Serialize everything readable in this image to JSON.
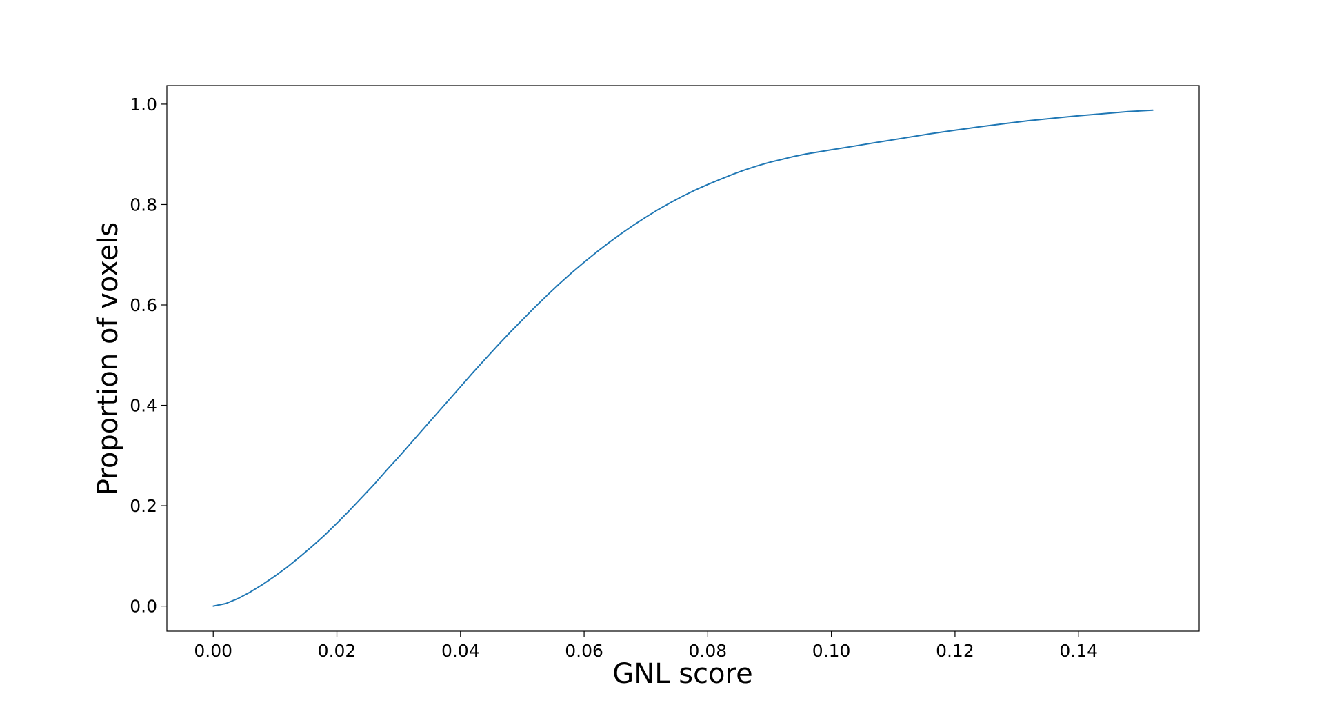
{
  "chart_data": {
    "type": "line",
    "title": "",
    "xlabel": "GNL score",
    "ylabel": "Proportion of voxels",
    "xlim": [
      -0.0075,
      0.1595
    ],
    "ylim": [
      -0.05,
      1.037
    ],
    "xticks": [
      0.0,
      0.02,
      0.04,
      0.06,
      0.08,
      0.1,
      0.12,
      0.14
    ],
    "xtick_labels": [
      "0.00",
      "0.02",
      "0.04",
      "0.06",
      "0.08",
      "0.10",
      "0.12",
      "0.14"
    ],
    "yticks": [
      0.0,
      0.2,
      0.4,
      0.6,
      0.8,
      1.0
    ],
    "ytick_labels": [
      "0.0",
      "0.2",
      "0.4",
      "0.6",
      "0.8",
      "1.0"
    ],
    "grid": false,
    "series": [
      {
        "color": "#1f77b4",
        "x": [
          0.0,
          0.002,
          0.004,
          0.006,
          0.008,
          0.01,
          0.012,
          0.014,
          0.016,
          0.018,
          0.02,
          0.022,
          0.024,
          0.026,
          0.028,
          0.03,
          0.032,
          0.034,
          0.036,
          0.038,
          0.04,
          0.042,
          0.044,
          0.046,
          0.048,
          0.05,
          0.052,
          0.054,
          0.056,
          0.058,
          0.06,
          0.062,
          0.064,
          0.066,
          0.068,
          0.07,
          0.072,
          0.074,
          0.076,
          0.078,
          0.08,
          0.082,
          0.084,
          0.086,
          0.088,
          0.09,
          0.092,
          0.094,
          0.096,
          0.098,
          0.1,
          0.104,
          0.108,
          0.112,
          0.116,
          0.12,
          0.124,
          0.128,
          0.132,
          0.136,
          0.14,
          0.144,
          0.148,
          0.152
        ],
        "y": [
          0.0,
          0.005,
          0.015,
          0.028,
          0.043,
          0.06,
          0.078,
          0.098,
          0.119,
          0.141,
          0.165,
          0.19,
          0.216,
          0.242,
          0.27,
          0.297,
          0.325,
          0.353,
          0.381,
          0.409,
          0.437,
          0.465,
          0.492,
          0.519,
          0.545,
          0.57,
          0.595,
          0.619,
          0.642,
          0.664,
          0.685,
          0.705,
          0.724,
          0.742,
          0.759,
          0.775,
          0.79,
          0.804,
          0.817,
          0.829,
          0.84,
          0.85,
          0.86,
          0.869,
          0.877,
          0.884,
          0.89,
          0.896,
          0.901,
          0.905,
          0.909,
          0.917,
          0.925,
          0.933,
          0.941,
          0.948,
          0.955,
          0.961,
          0.967,
          0.972,
          0.977,
          0.981,
          0.985,
          0.988
        ]
      }
    ]
  }
}
